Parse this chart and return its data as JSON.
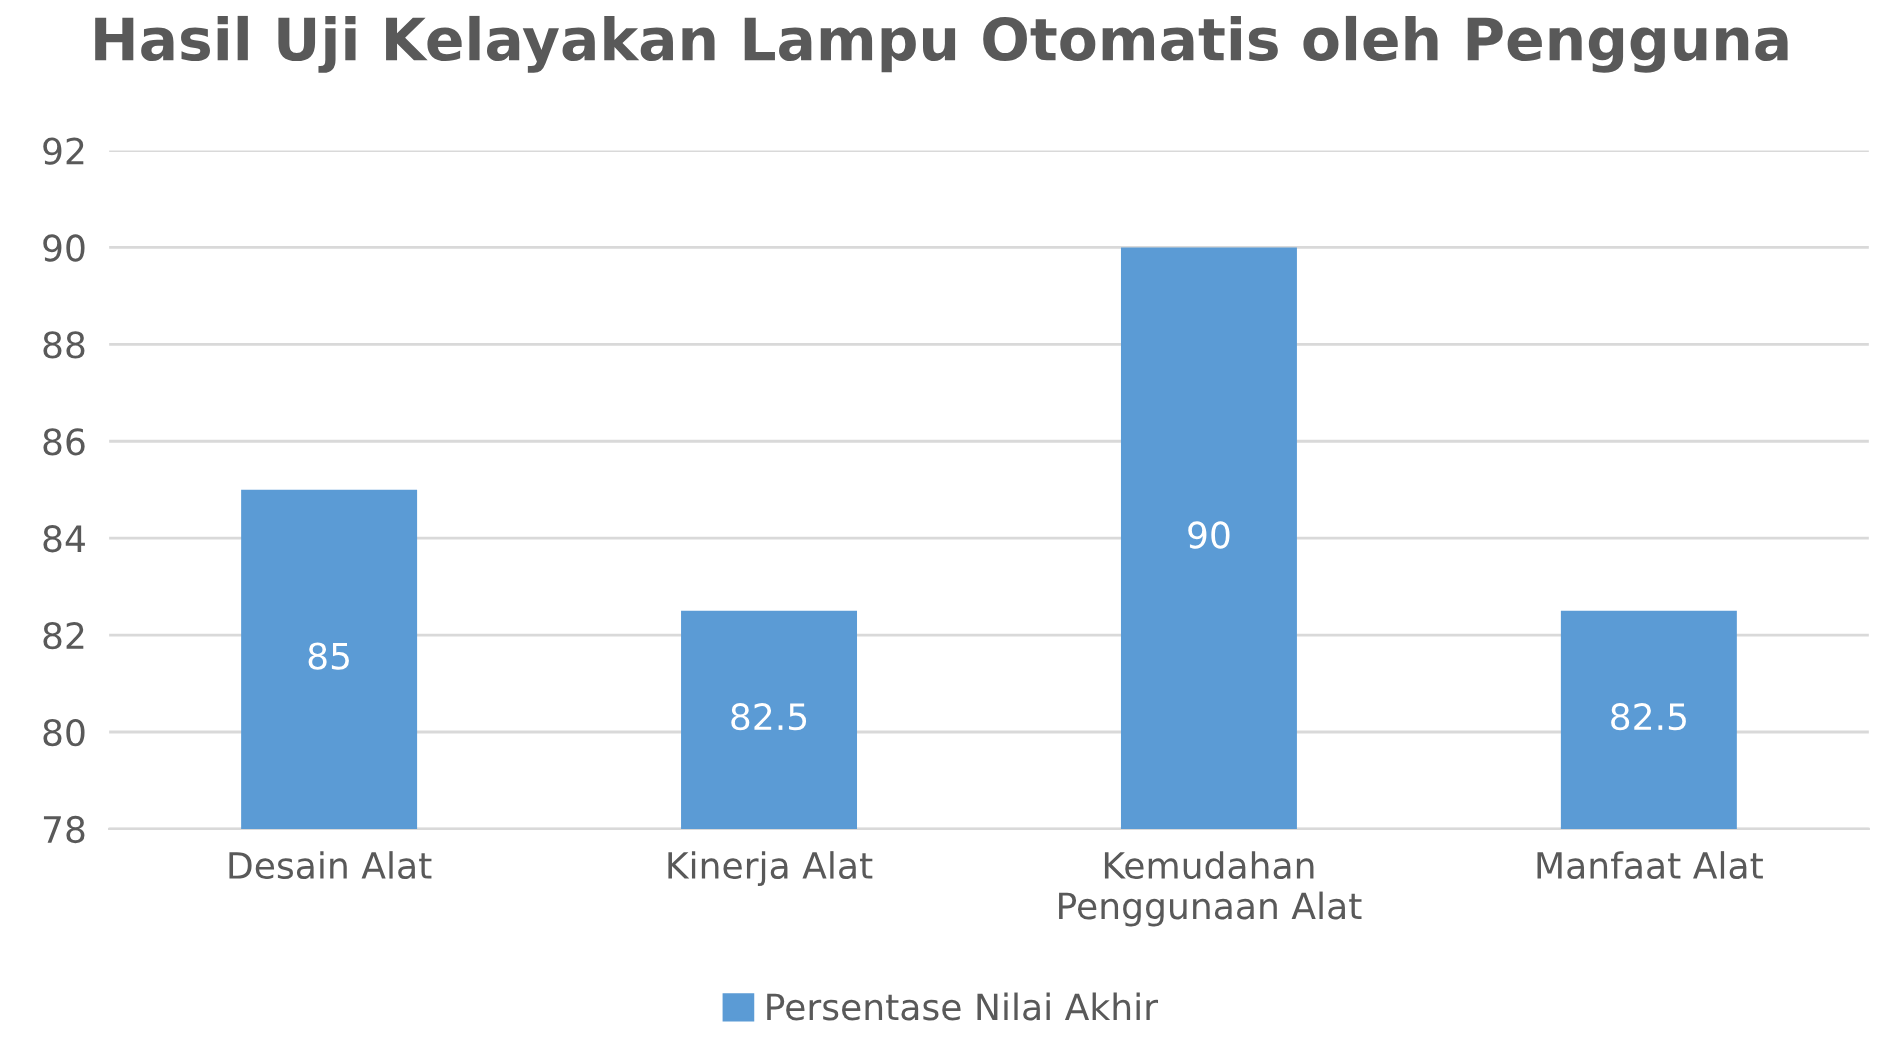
{
  "chart_data": {
    "type": "bar",
    "title": "Hasil Uji Kelayakan Lampu Otomatis oleh Pengguna",
    "categories": [
      "Desain Alat",
      "Kinerja Alat",
      "Kemudahan\nPenggunaan Alat",
      "Manfaat Alat"
    ],
    "series": [
      {
        "name": "Persentase Nilai Akhir",
        "color": "#5b9bd5",
        "values": [
          85,
          82.5,
          90,
          82.5
        ]
      }
    ],
    "ylim": [
      78,
      92
    ],
    "yticks": [
      78,
      80,
      82,
      84,
      86,
      88,
      90,
      92
    ],
    "grid": "y",
    "legend": "bottom",
    "data_labels": true
  }
}
